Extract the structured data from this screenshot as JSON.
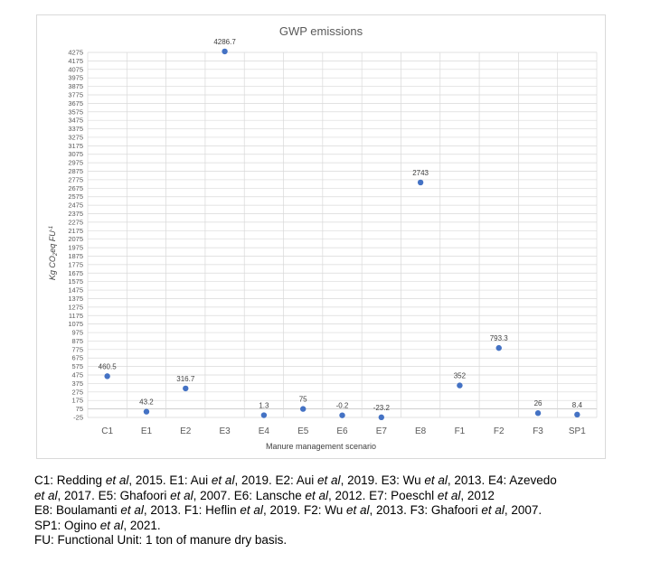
{
  "chart_data": {
    "type": "scatter",
    "title": "GWP emissions",
    "xlabel": "Manure management scenario",
    "ylabel_main": "Kg CO",
    "ylabel_sub": "2",
    "ylabel_rest": "eq FU",
    "ylabel_sup": "-1",
    "categories": [
      "C1",
      "E1",
      "E2",
      "E3",
      "E4",
      "E5",
      "E6",
      "E7",
      "E8",
      "F1",
      "F2",
      "F3",
      "SP1"
    ],
    "values": [
      460.5,
      43.2,
      316.7,
      4286.7,
      1.3,
      75,
      -0.2,
      -23.2,
      2743,
      352,
      793.3,
      26,
      8.4
    ],
    "data_labels": [
      "460.5",
      "43.2",
      "316.7",
      "4286.7",
      "1.3",
      "75",
      "-0.2",
      "-23.2",
      "2743",
      "352",
      "793.3",
      "26",
      "8.4"
    ],
    "ylim": [
      -25,
      4275
    ],
    "ytick_step": 100,
    "grid": true,
    "marker_color": "#4472c4"
  },
  "footnotes": [
    {
      "parts": [
        [
          "C1: Redding ",
          false
        ],
        [
          "et al",
          true
        ],
        [
          ", 2015. E1: Aui ",
          false
        ],
        [
          "et al",
          true
        ],
        [
          ", 2019.  E2: Aui ",
          false
        ],
        [
          "et al",
          true
        ],
        [
          ", 2019. E3: Wu ",
          false
        ],
        [
          "et al",
          true
        ],
        [
          ", 2013. E4: Azevedo",
          false
        ]
      ]
    },
    {
      "parts": [
        [
          "et al",
          true
        ],
        [
          ", 2017. E5: Ghafoori ",
          false
        ],
        [
          "et al",
          true
        ],
        [
          ", 2007. E6: Lansche ",
          false
        ],
        [
          "et al",
          true
        ],
        [
          ", 2012. E7: Poeschl ",
          false
        ],
        [
          "et al",
          true
        ],
        [
          ", 2012",
          false
        ]
      ]
    },
    {
      "parts": [
        [
          "E8: Boulamanti ",
          false
        ],
        [
          "et al",
          true
        ],
        [
          ", 2013. F1: Heflin ",
          false
        ],
        [
          "et al",
          true
        ],
        [
          ", 2019. F2: Wu ",
          false
        ],
        [
          "et al",
          true
        ],
        [
          ", 2013. F3: Ghafoori ",
          false
        ],
        [
          "et al",
          true
        ],
        [
          ", 2007.",
          false
        ]
      ]
    },
    {
      "parts": [
        [
          "SP1: Ogino ",
          false
        ],
        [
          "et al",
          true
        ],
        [
          ", 2021.",
          false
        ]
      ]
    },
    {
      "parts": [
        [
          "FU: Functional Unit: 1 ton of manure dry basis.",
          false
        ]
      ]
    }
  ]
}
